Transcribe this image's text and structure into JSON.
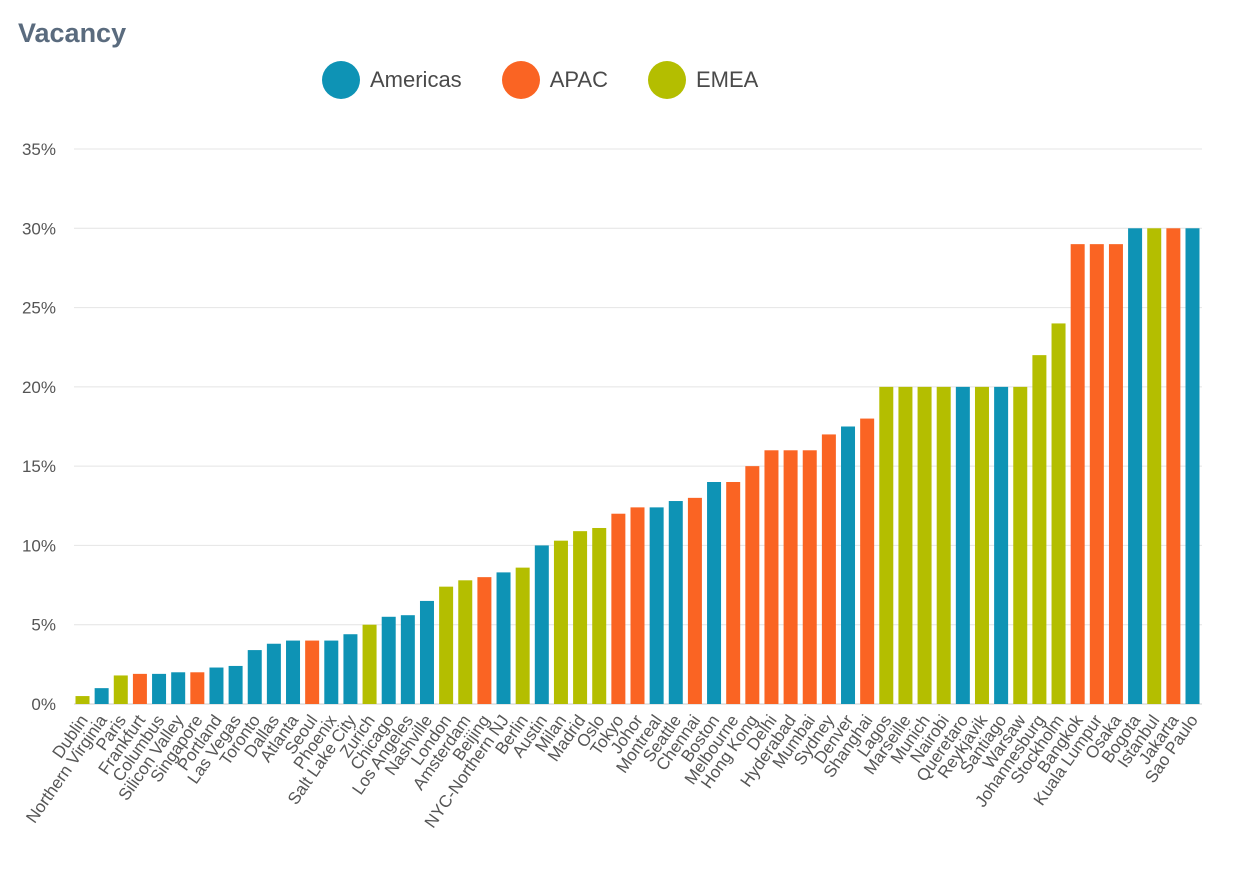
{
  "chart_data": {
    "type": "bar",
    "title": "Vacancy",
    "xlabel": "",
    "ylabel": "",
    "ylim": [
      0,
      35
    ],
    "yticks": [
      "0%",
      "5%",
      "10%",
      "15%",
      "20%",
      "25%",
      "30%",
      "35%"
    ],
    "ytick_values": [
      0,
      5,
      10,
      15,
      20,
      25,
      30,
      35
    ],
    "grid": true,
    "legend_position": "top-center",
    "legend": [
      {
        "name": "Americas",
        "color": "#0e93b5"
      },
      {
        "name": "APAC",
        "color": "#fa6423"
      },
      {
        "name": "EMEA",
        "color": "#b4be00"
      }
    ],
    "categories": [
      "Dublin",
      "Northern Virginia",
      "Paris",
      "Frankfurt",
      "Columbus",
      "Silicon Valley",
      "Singapore",
      "Portland",
      "Las Vegas",
      "Toronto",
      "Dallas",
      "Atlanta",
      "Seoul",
      "Phoenix",
      "Salt Lake City",
      "Zurich",
      "Chicago",
      "Los Angeles",
      "Nashville",
      "London",
      "Amsterdam",
      "Beijing",
      "NYC-Northern NJ",
      "Berlin",
      "Austin",
      "Milan",
      "Madrid",
      "Oslo",
      "Tokyo",
      "Johor",
      "Montreal",
      "Seattle",
      "Chennai",
      "Boston",
      "Melbourne",
      "Hong Kong",
      "Delhi",
      "Hyderabad",
      "Mumbai",
      "Sydney",
      "Denver",
      "Shanghai",
      "Lagos",
      "Marseille",
      "Munich",
      "Nairobi",
      "Queretaro",
      "Reykjavik",
      "Santiago",
      "Warsaw",
      "Johannesburg",
      "Stockholm",
      "Bangkok",
      "Kuala Lumpur",
      "Osaka",
      "Bogota",
      "Istanbul",
      "Jakarta",
      "Sao Paulo"
    ],
    "values": [
      0.5,
      1.0,
      1.8,
      1.9,
      1.9,
      2.0,
      2.0,
      2.3,
      2.4,
      3.4,
      3.8,
      4.0,
      4.0,
      4.0,
      4.4,
      5.0,
      5.5,
      5.6,
      6.5,
      7.4,
      7.8,
      8.0,
      8.3,
      8.6,
      10.0,
      10.3,
      10.9,
      11.1,
      12.0,
      12.4,
      12.4,
      12.8,
      13.0,
      14.0,
      14.0,
      15.0,
      16.0,
      16.0,
      16.0,
      17.0,
      17.5,
      18.0,
      20.0,
      20.0,
      20.0,
      20.0,
      20.0,
      20.0,
      20.0,
      20.0,
      22.0,
      24.0,
      29.0,
      29.0,
      29.0,
      30.0,
      30.0,
      30.0,
      30.0
    ],
    "regions": [
      "EMEA",
      "Americas",
      "EMEA",
      "APAC",
      "Americas",
      "Americas",
      "APAC",
      "Americas",
      "Americas",
      "Americas",
      "Americas",
      "Americas",
      "APAC",
      "Americas",
      "Americas",
      "EMEA",
      "Americas",
      "Americas",
      "Americas",
      "EMEA",
      "EMEA",
      "APAC",
      "Americas",
      "EMEA",
      "Americas",
      "EMEA",
      "EMEA",
      "EMEA",
      "APAC",
      "APAC",
      "Americas",
      "Americas",
      "APAC",
      "Americas",
      "APAC",
      "APAC",
      "APAC",
      "APAC",
      "APAC",
      "APAC",
      "Americas",
      "APAC",
      "EMEA",
      "EMEA",
      "EMEA",
      "EMEA",
      "Americas",
      "EMEA",
      "Americas",
      "EMEA",
      "EMEA",
      "EMEA",
      "APAC",
      "APAC",
      "APAC",
      "Americas",
      "EMEA",
      "APAC",
      "Americas"
    ]
  }
}
